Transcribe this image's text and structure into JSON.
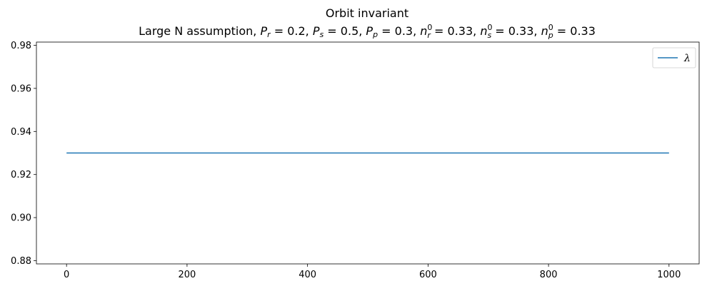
{
  "chart_data": {
    "type": "line",
    "title": "Orbit invariant",
    "subtitle": "Large N assumption, P_r = 0.2, P_s = 0.5, P_p = 0.3, n_r^0 = 0.33, n_s^0 = 0.33, n_p^0 = 0.33",
    "subtitle_parts": {
      "prefix": "Large N assumption, ",
      "Pr_label": "P",
      "Pr_sub": "r",
      "Pr_value": "0.2",
      "Ps_label": "P",
      "Ps_sub": "s",
      "Ps_value": "0.5",
      "Pp_label": "P",
      "Pp_sub": "p",
      "Pp_value": "0.3",
      "nr_label": "n",
      "nr_sub": "r",
      "nr_sup": "0",
      "nr_value": "0.33",
      "ns_label": "n",
      "ns_sub": "s",
      "ns_sup": "0",
      "ns_value": "0.33",
      "np_label": "n",
      "np_sub": "p",
      "np_sup": "0",
      "np_value": "0.33"
    },
    "xlabel": "",
    "ylabel": "",
    "xlim": [
      -50,
      1050
    ],
    "ylim": [
      0.8785,
      0.9815
    ],
    "xticks": [
      0,
      200,
      400,
      600,
      800,
      1000
    ],
    "yticks": [
      0.88,
      0.9,
      0.92,
      0.94,
      0.96,
      0.98
    ],
    "ytick_labels": [
      "0.88",
      "0.90",
      "0.92",
      "0.94",
      "0.96",
      "0.98"
    ],
    "xtick_labels": [
      "0",
      "200",
      "400",
      "600",
      "800",
      "1000"
    ],
    "grid": false,
    "legend_position": "top-right",
    "series": [
      {
        "name": "λ",
        "color": "#1f77b4",
        "x": [
          0,
          1000
        ],
        "y": [
          0.93,
          0.93
        ]
      }
    ]
  }
}
